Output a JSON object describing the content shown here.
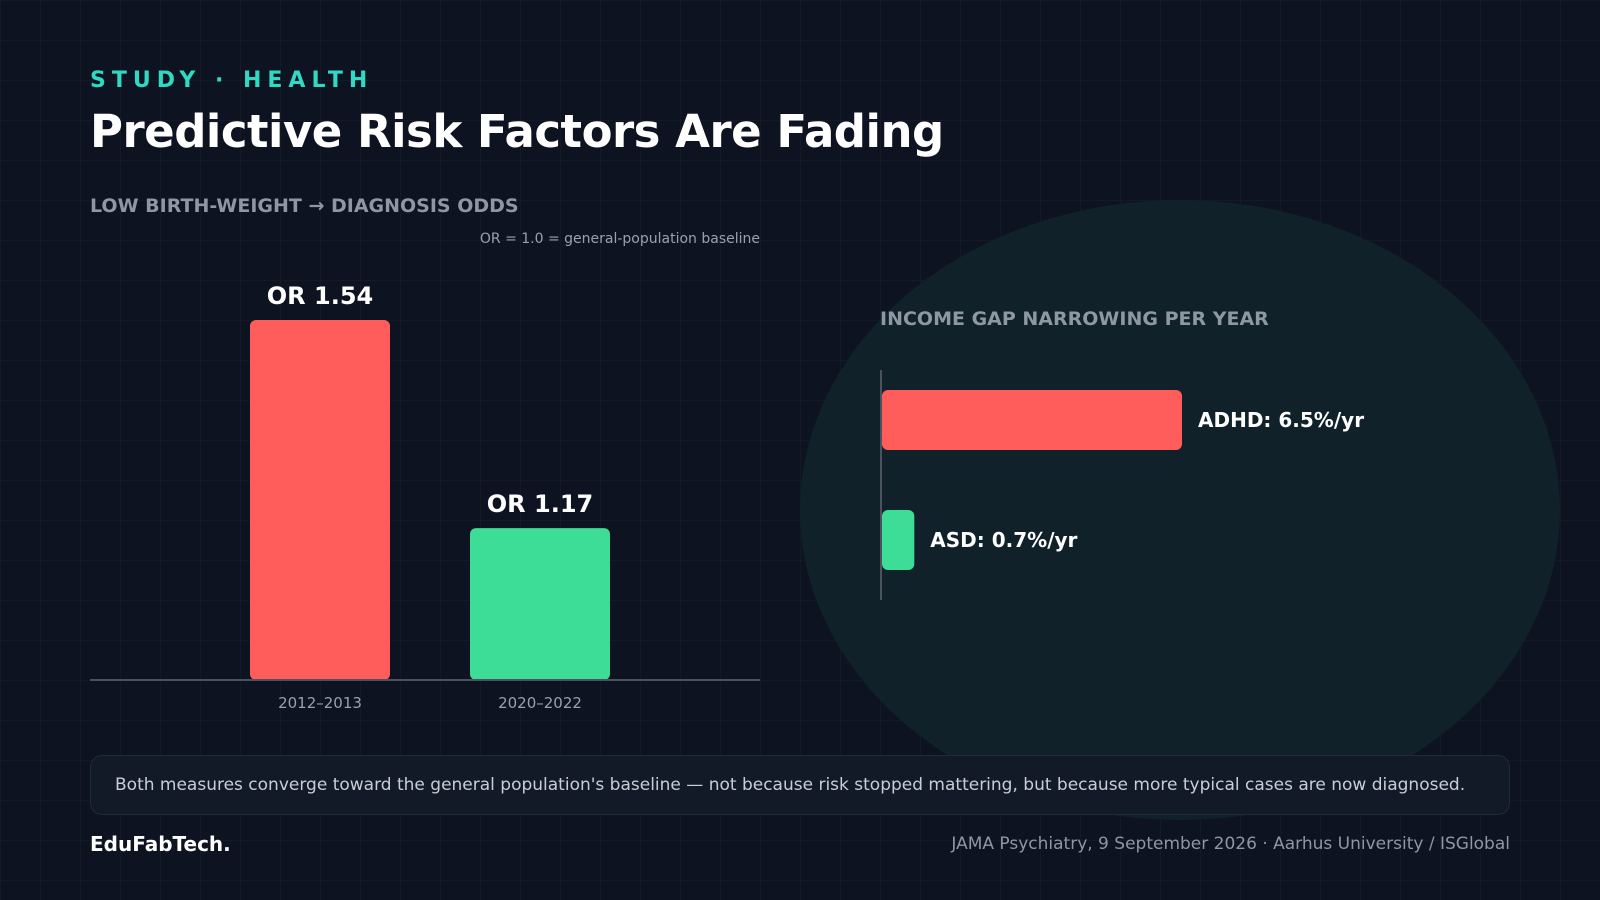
{
  "header": {
    "eyebrow": "STUDY · HEALTH",
    "title": "Predictive Risk Factors Are Fading"
  },
  "colors": {
    "red": "#ff5c5c",
    "green": "#3ddc97",
    "accent": "#2fd9c2"
  },
  "chart_data": [
    {
      "type": "bar",
      "title": "LOW BIRTH-WEIGHT → DIAGNOSIS ODDS",
      "note": "OR = 1.0 = general-population baseline",
      "categories": [
        "2012–2013",
        "2020–2022"
      ],
      "values": [
        1.54,
        1.17
      ],
      "data_labels": [
        "OR 1.54",
        "OR 1.17"
      ],
      "bar_colors": [
        "#ff5c5c",
        "#3ddc97"
      ],
      "ylim": [
        0.9,
        1.54
      ],
      "grid": false
    },
    {
      "type": "bar",
      "orientation": "horizontal",
      "title": "INCOME GAP NARROWING PER YEAR",
      "categories": [
        "ADHD",
        "ASD"
      ],
      "values": [
        6.5,
        0.7
      ],
      "data_labels": [
        "ADHD: 6.5%/yr",
        "ASD: 0.7%/yr"
      ],
      "bar_colors": [
        "#ff5c5c",
        "#3ddc97"
      ],
      "grid": false
    }
  ],
  "callout": "Both measures converge toward the general population's baseline — not because risk stopped mattering, but because more typical cases are now diagnosed.",
  "footer": {
    "brand": "EduFabTech.",
    "source": "JAMA Psychiatry, 9 September 2026 · Aarhus University / ISGlobal"
  }
}
